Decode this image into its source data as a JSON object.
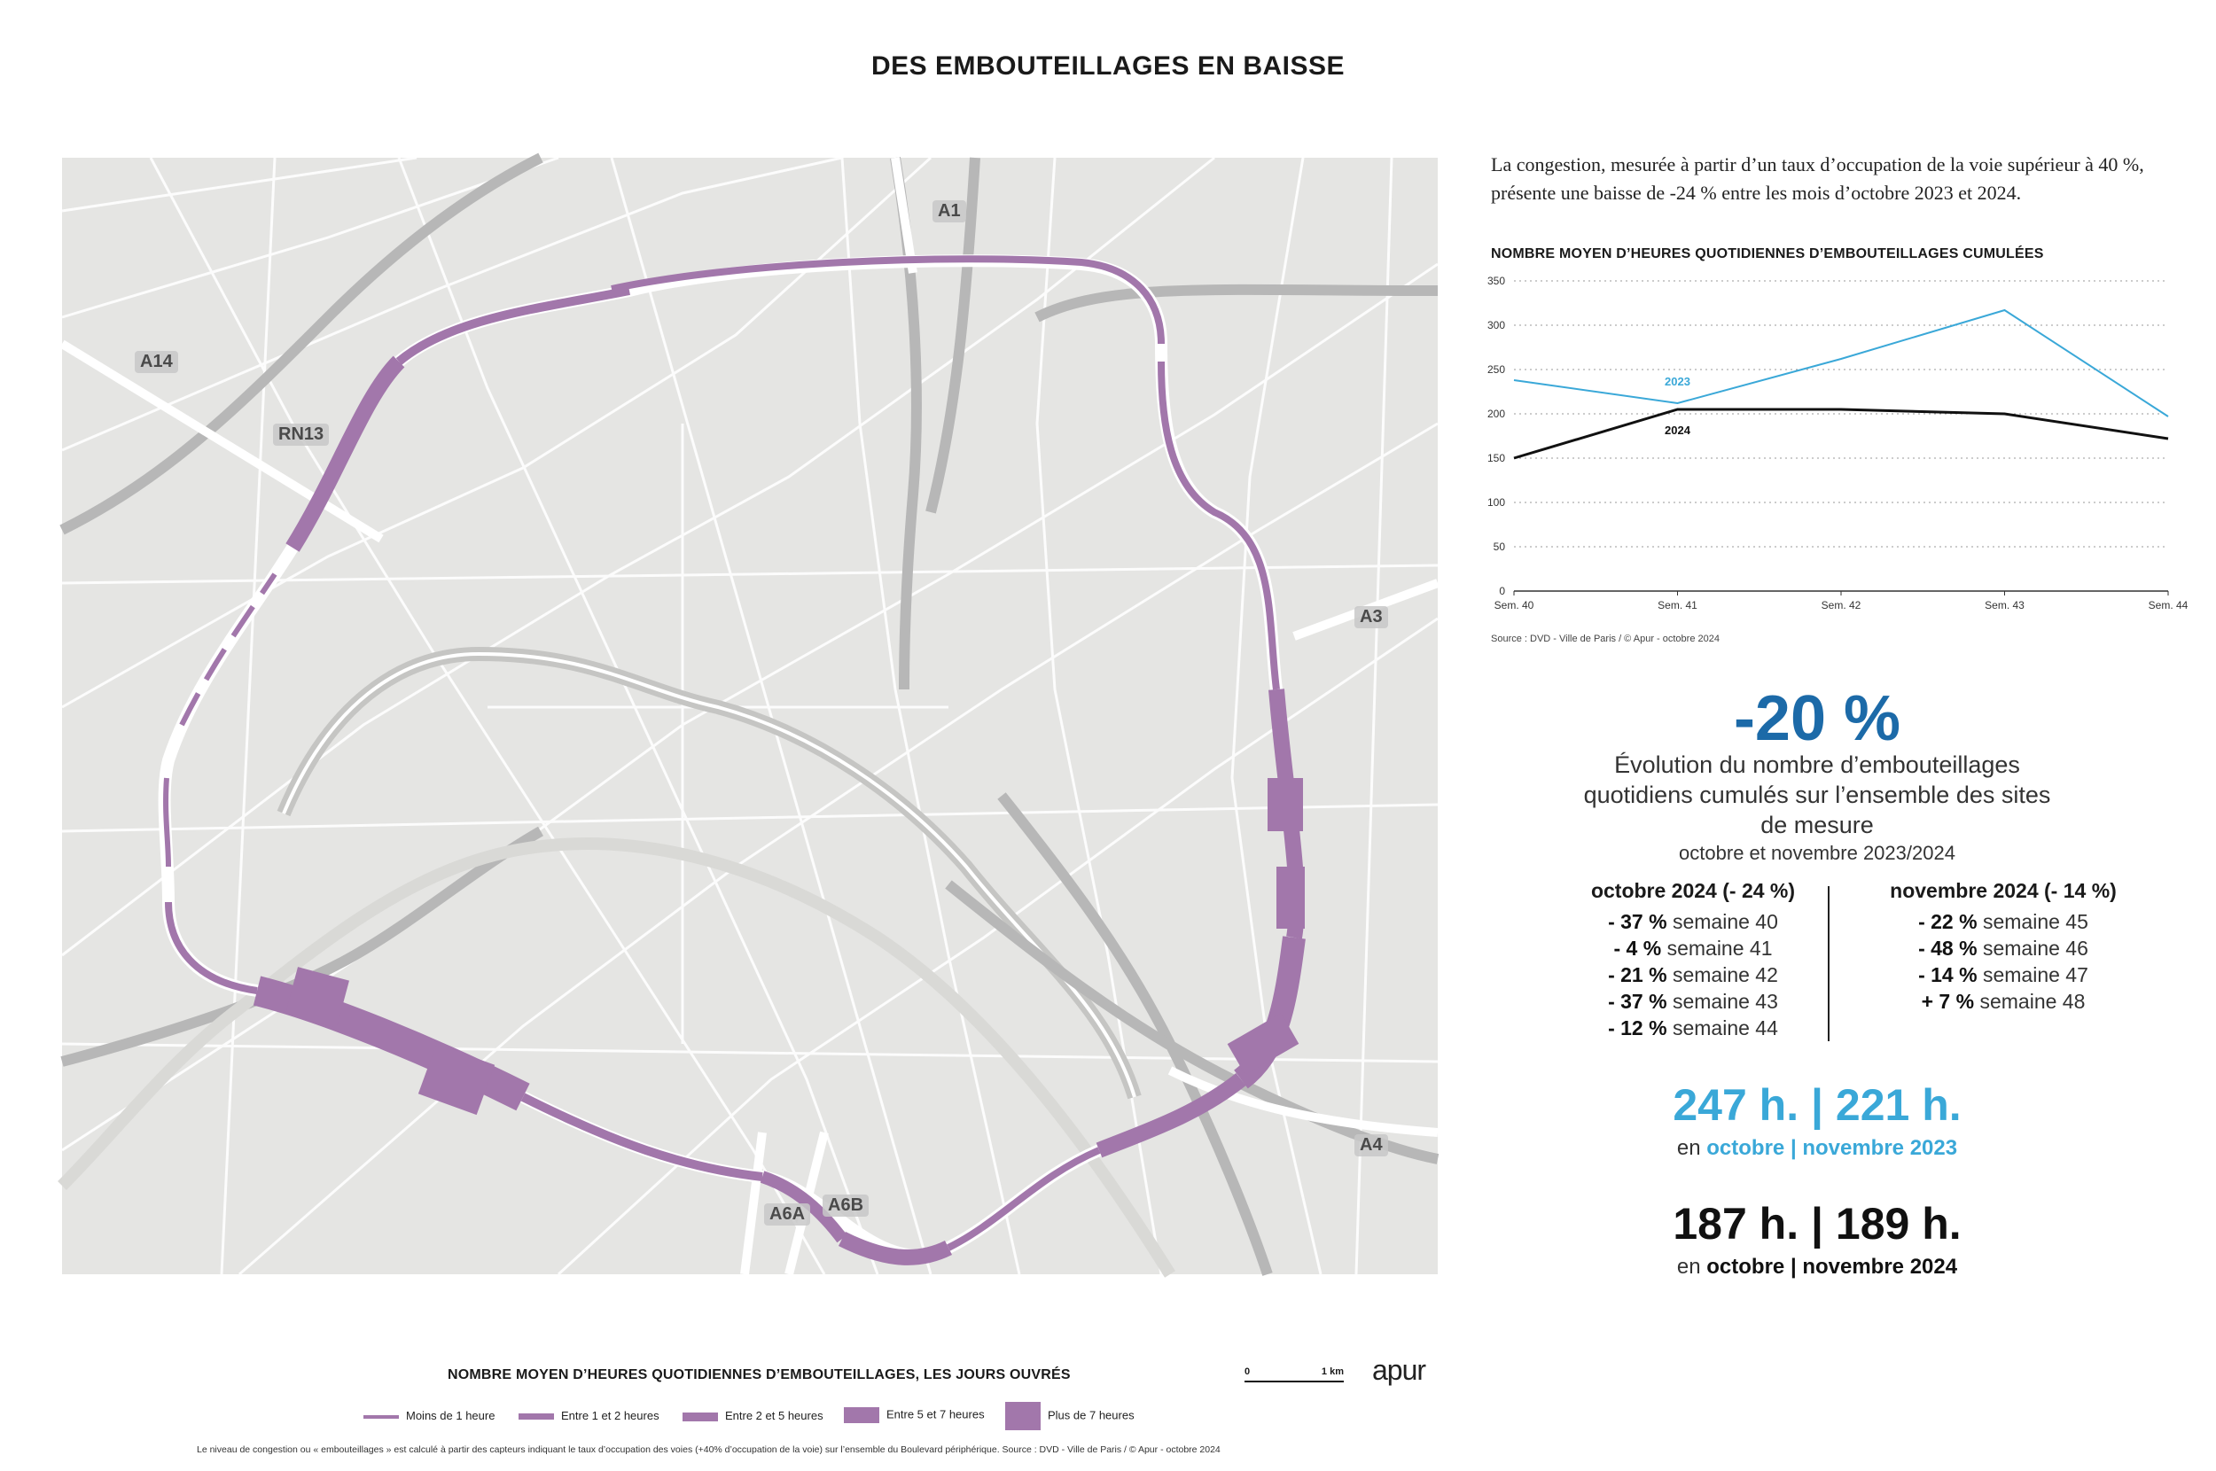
{
  "title": "DES EMBOUTEILLAGES EN BAISSE",
  "map": {
    "road_labels": [
      "A1",
      "A14",
      "RN13",
      "A3",
      "A4",
      "A6A",
      "A6B"
    ],
    "congestion_color": "#a277ab",
    "base_color": "#e5e5e3",
    "road_color": "#ffffff",
    "rail_color": "#b7b7b7"
  },
  "intro_text": "La congestion, mesurée à partir d’un taux d’occupation de la voie supérieur à 40 %, présente une baisse de -24 % entre les mois d’octobre 2023 et 2024.",
  "chart_title": "NOMBRE MOYEN D’HEURES QUOTIDIENNES D’EMBOUTEILLAGES CUMULÉES",
  "chart_source": "Source : DVD - Ville de Paris / © Apur - octobre 2024",
  "chart_data": {
    "type": "line",
    "categories": [
      "Sem. 40",
      "Sem. 41",
      "Sem. 42",
      "Sem. 43",
      "Sem. 44"
    ],
    "series": [
      {
        "name": "2023",
        "values": [
          238,
          212,
          262,
          317,
          197
        ],
        "color": "#3aa8d8"
      },
      {
        "name": "2024",
        "values": [
          150,
          205,
          205,
          200,
          172
        ],
        "color": "#111111"
      }
    ],
    "ylim": [
      0,
      350
    ],
    "yticks": [
      "0",
      "50",
      "100",
      "150",
      "200",
      "250",
      "300",
      "350"
    ],
    "grid": true
  },
  "kpi": {
    "big_pct": "-20 %",
    "evolution_text": "Évolution du nombre d’embouteillages quotidiens cumulés sur l’ensemble des sites de mesure",
    "period": "octobre et novembre 2023/2024"
  },
  "october": {
    "head": "octobre 2024 (- 24 %)",
    "rows": [
      {
        "pct": "- 37 %",
        "label": "semaine 40"
      },
      {
        "pct": "- 4 %",
        "label": "semaine 41"
      },
      {
        "pct": "- 21 %",
        "label": "semaine 42"
      },
      {
        "pct": "- 37 %",
        "label": "semaine 43"
      },
      {
        "pct": "- 12 %",
        "label": "semaine 44"
      }
    ]
  },
  "november": {
    "head": "novembre 2024 (- 14 %)",
    "rows": [
      {
        "pct": "- 22 %",
        "label": "semaine 45"
      },
      {
        "pct": "- 48 %",
        "label": "semaine 46"
      },
      {
        "pct": "- 14 %",
        "label": "semaine 47"
      },
      {
        "pct": "+ 7 %",
        "label": "semaine 48"
      }
    ]
  },
  "stat_2023": {
    "value": "247 h. | 221 h.",
    "prefix": "en",
    "months": "octobre | novembre 2023"
  },
  "stat_2024": {
    "value": "187 h. | 189 h.",
    "prefix": "en",
    "months": "octobre | novembre 2024"
  },
  "legend": {
    "title": "NOMBRE MOYEN D’HEURES QUOTIDIENNES D’EMBOUTEILLAGES, LES JOURS OUVRÉS",
    "items": [
      "Moins de 1 heure",
      "Entre 1 et 2 heures",
      "Entre 2 et 5 heures",
      "Entre 5 et 7 heures",
      "Plus de 7 heures"
    ]
  },
  "scale": {
    "zero": "0",
    "one": "1 km"
  },
  "logo": "apur",
  "footnote": "Le niveau de congestion ou « embouteillages » est calculé à partir des capteurs indiquant le taux d’occupation des voies (+40% d’occupation de la voie) sur l’ensemble du Boulevard périphérique. Source : DVD - Ville de Paris / © Apur - octobre 2024"
}
